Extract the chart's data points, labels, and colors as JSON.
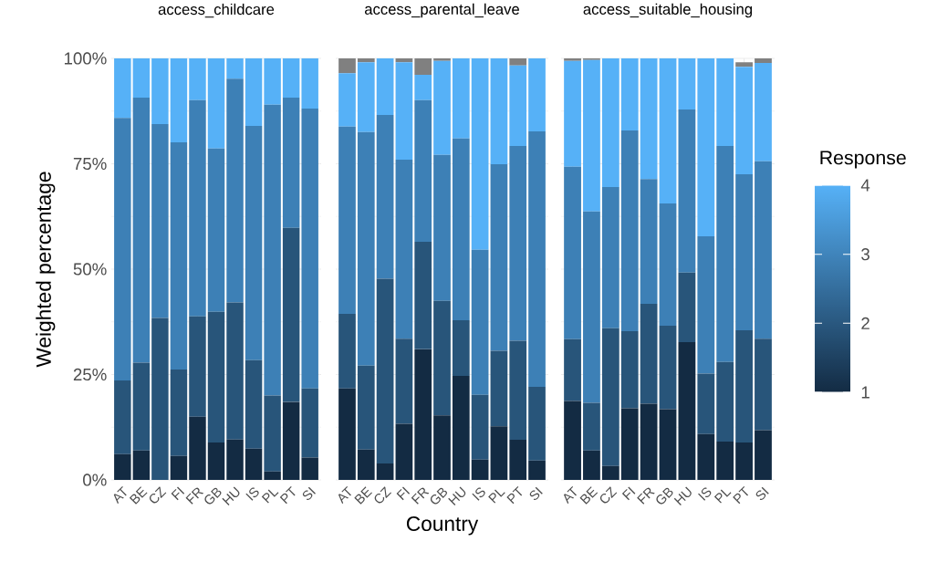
{
  "chart_data": [
    {
      "type": "bar",
      "title": "access_childcare",
      "ylabel": "Weighted percentage",
      "stacked": true,
      "grid": true,
      "categories": [
        "AT",
        "BE",
        "CZ",
        "FI",
        "FR",
        "GB",
        "HU",
        "IS",
        "PL",
        "PT",
        "SI"
      ],
      "ylim": [
        0,
        100
      ],
      "yticks": [
        {
          "value": 0,
          "label": "0%"
        },
        {
          "value": 25,
          "label": "25%"
        },
        {
          "value": 50,
          "label": "50%"
        },
        {
          "value": 75,
          "label": "75%"
        },
        {
          "value": 100,
          "label": "100%"
        }
      ],
      "series": [
        {
          "color": "#132b43",
          "values": [
            6.1,
            7.0,
            0,
            5.7,
            15.0,
            8.9,
            9.6,
            7.4,
            2.0,
            18.5,
            5.3
          ]
        },
        {
          "color": "#28557a",
          "values": [
            17.5,
            20.8,
            38.4,
            20.5,
            23.8,
            31.0,
            32.5,
            21.0,
            18.0,
            41.3,
            16.4
          ]
        },
        {
          "color": "#3d80b6",
          "values": [
            62.3,
            62.9,
            46.0,
            53.9,
            51.3,
            38.7,
            53.1,
            55.6,
            69.0,
            30.9,
            66.4
          ]
        },
        {
          "color": "#56b1f7",
          "values": [
            14.1,
            9.3,
            15.6,
            19.9,
            9.9,
            21.4,
            4.8,
            16.0,
            11.0,
            9.3,
            11.9
          ]
        },
        {
          "color": "#808080",
          "values": [
            0,
            0,
            0,
            0,
            0,
            0,
            0,
            0,
            0,
            0,
            0
          ]
        }
      ]
    },
    {
      "type": "bar",
      "title": "access_parental_leave",
      "xlabel": "Country",
      "stacked": true,
      "grid": true,
      "tick_labels": "x",
      "categories": [
        "AT",
        "BE",
        "CZ",
        "FI",
        "FR",
        "GB",
        "HU",
        "IS",
        "PL",
        "PT",
        "SI"
      ],
      "ylim": [
        0,
        100
      ],
      "yticks": [
        0,
        25,
        50,
        75,
        100
      ],
      "series": [
        {
          "color": "#132b43",
          "values": [
            21.7,
            7.2,
            3.9,
            13.3,
            31.0,
            15.3,
            24.7,
            4.8,
            12.7,
            9.5,
            4.6
          ]
        },
        {
          "color": "#28557a",
          "values": [
            17.7,
            19.9,
            43.8,
            20.2,
            25.5,
            27.2,
            13.2,
            15.4,
            17.9,
            23.5,
            17.5
          ]
        },
        {
          "color": "#3d80b6",
          "values": [
            44.4,
            55.4,
            38.9,
            42.5,
            33.6,
            34.6,
            43.1,
            34.4,
            44.3,
            46.2,
            60.6
          ]
        },
        {
          "color": "#56b1f7",
          "values": [
            12.7,
            16.6,
            13.4,
            23.1,
            6.0,
            22.3,
            19.0,
            45.4,
            25.1,
            19.1,
            17.3
          ]
        },
        {
          "color": "#808080",
          "values": [
            3.5,
            0.9,
            0,
            0.9,
            3.9,
            0.6,
            0,
            0,
            0,
            1.7,
            0
          ]
        }
      ]
    },
    {
      "type": "bar",
      "title": "access_suitable_housing",
      "stacked": true,
      "grid": true,
      "tick_labels": "x",
      "legend": "right",
      "legend_title": "Response",
      "categories": [
        "AT",
        "BE",
        "CZ",
        "FI",
        "FR",
        "GB",
        "HU",
        "IS",
        "PL",
        "PT",
        "SI"
      ],
      "ylim": [
        0,
        100
      ],
      "yticks": [
        0,
        25,
        50,
        75,
        100
      ],
      "series": [
        {
          "name": "1",
          "color": "#132b43",
          "values": [
            18.7,
            7.0,
            3.3,
            17.0,
            18.1,
            16.8,
            32.7,
            10.9,
            9.1,
            8.9,
            11.8
          ]
        },
        {
          "name": "2",
          "color": "#28557a",
          "values": [
            14.7,
            11.3,
            32.7,
            18.3,
            23.7,
            19.8,
            16.5,
            14.3,
            18.9,
            26.6,
            21.7
          ]
        },
        {
          "name": "3",
          "color": "#3d80b6",
          "values": [
            40.9,
            45.4,
            33.5,
            47.6,
            29.6,
            29.0,
            38.7,
            32.6,
            51.2,
            37.0,
            42.1
          ]
        },
        {
          "name": "4",
          "color": "#56b1f7",
          "values": [
            25.1,
            35.9,
            30.5,
            17.1,
            28.6,
            34.4,
            12.1,
            42.2,
            20.8,
            25.5,
            23.3
          ]
        },
        {
          "color": "#808080",
          "values": [
            0.6,
            0.4,
            0,
            0,
            0,
            0,
            0,
            0,
            0,
            1.1,
            1.1
          ]
        }
      ]
    }
  ]
}
